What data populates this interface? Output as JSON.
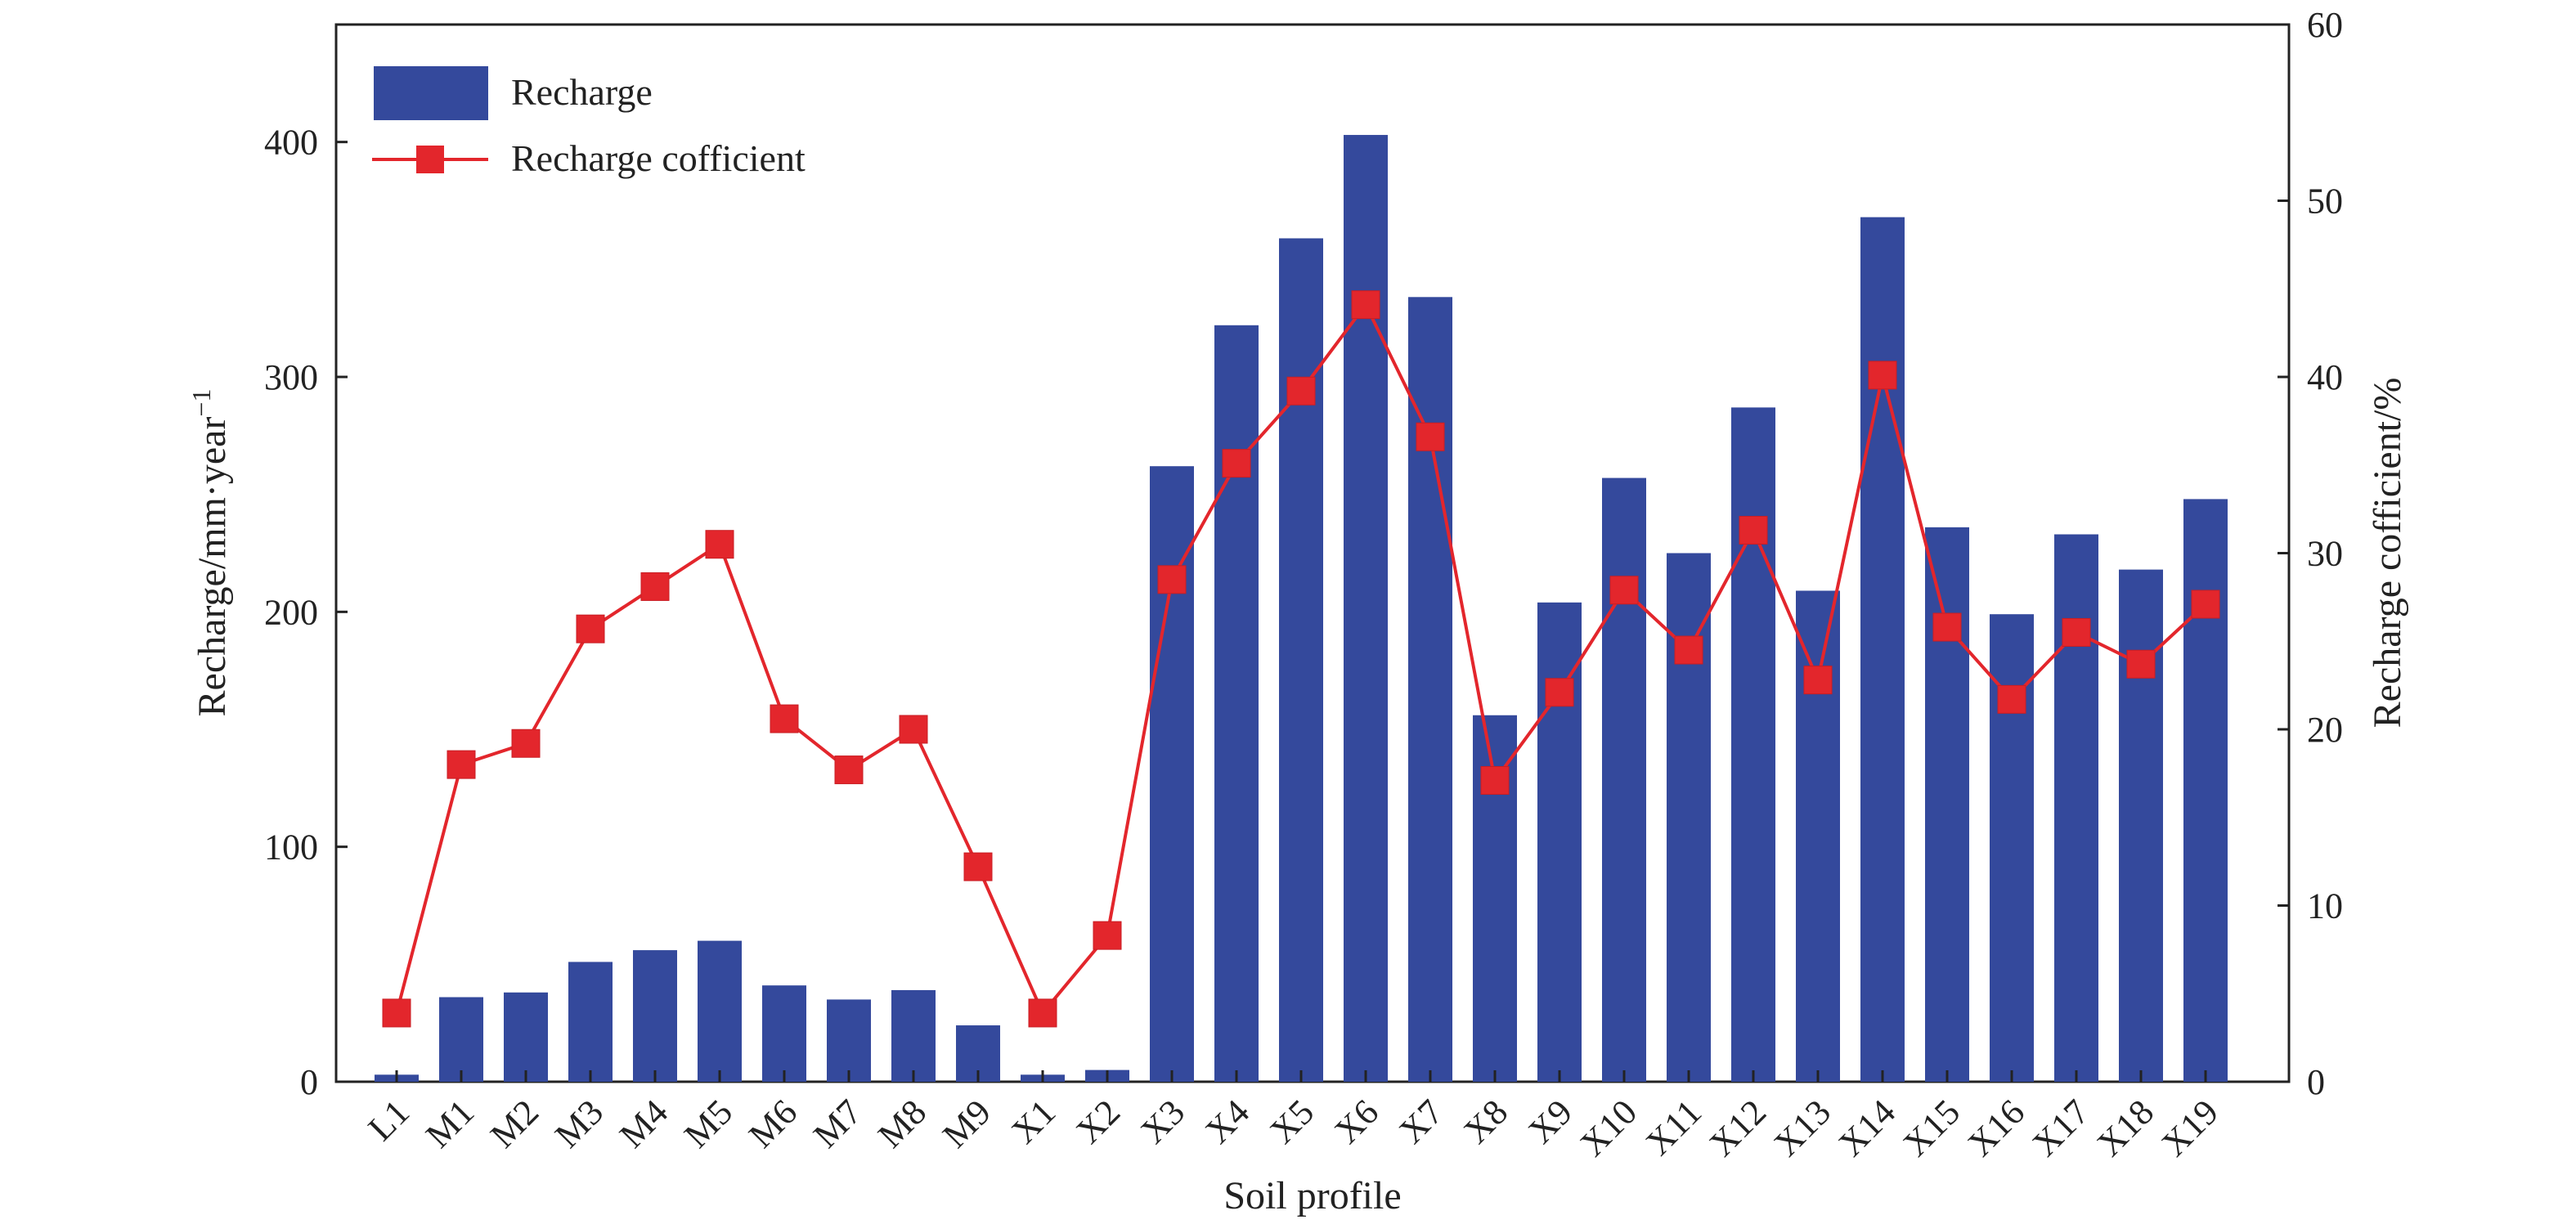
{
  "chart_data": {
    "type": "bar",
    "categories": [
      "L1",
      "M1",
      "M2",
      "M3",
      "M4",
      "M5",
      "M6",
      "M7",
      "M8",
      "M9",
      "X1",
      "X2",
      "X3",
      "X4",
      "X5",
      "X6",
      "X7",
      "X8",
      "X9",
      "X10",
      "X11",
      "X12",
      "X13",
      "X14",
      "X15",
      "X16",
      "X17",
      "X18",
      "X19"
    ],
    "series": [
      {
        "name": "Recharge",
        "type": "bar",
        "axis": "left",
        "color": "#34499c",
        "values": [
          3,
          36,
          38,
          51,
          56,
          60,
          41,
          35,
          39,
          24,
          3,
          5,
          262,
          322,
          359,
          403,
          334,
          156,
          204,
          257,
          225,
          287,
          209,
          368,
          236,
          199,
          233,
          218,
          248
        ]
      },
      {
        "name": "Recharge cofficient",
        "type": "line",
        "axis": "right",
        "color": "#e3262c",
        "values": [
          3.9,
          18.0,
          19.2,
          25.7,
          28.1,
          30.5,
          20.6,
          17.7,
          20.0,
          12.2,
          3.9,
          8.3,
          28.5,
          35.1,
          39.2,
          44.1,
          36.6,
          17.1,
          22.1,
          27.9,
          24.5,
          31.3,
          22.8,
          40.1,
          25.8,
          21.7,
          25.5,
          23.7,
          27.1
        ]
      }
    ],
    "xlabel": "Soil profile",
    "ylabel_left": "Recharge/mm·year",
    "ylabel_left_superscript": "−1",
    "ylabel_right": "Recharge cofficient/%",
    "ylim_left": [
      0,
      450
    ],
    "ylim_right": [
      0,
      60
    ],
    "yticks_left": [
      "0",
      "100",
      "200",
      "300",
      "400"
    ],
    "yticks_right": [
      "0",
      "10",
      "20",
      "30",
      "40",
      "50",
      "60"
    ],
    "legend": {
      "position": "top-left",
      "items": [
        "Recharge",
        "Recharge cofficient"
      ]
    },
    "grid": false
  }
}
